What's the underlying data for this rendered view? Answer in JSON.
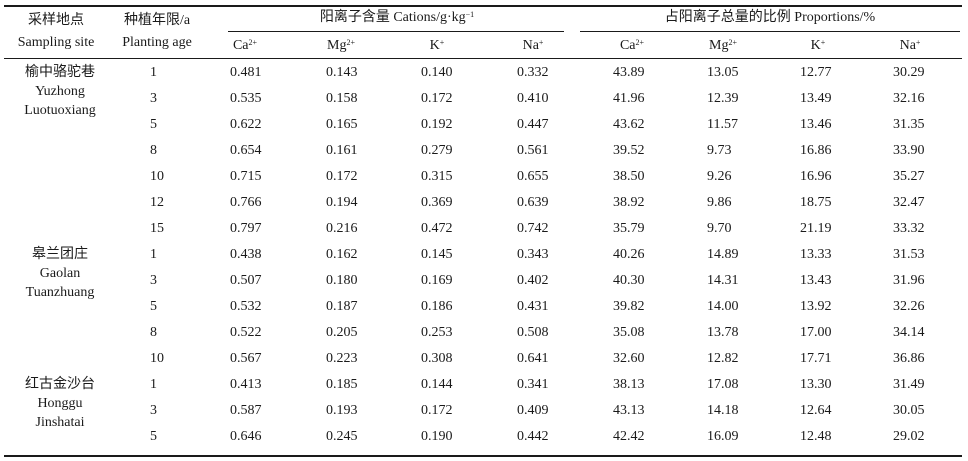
{
  "header": {
    "site_cn": "采样地点",
    "site_en": "Sampling site",
    "age_cn": "种植年限/a",
    "age_en": "Planting age",
    "cation_group": "阳离子含量 Cations/g·kg",
    "cation_group_sup": "−1",
    "proportion_group": "占阳离子总量的比例 Proportions/%",
    "ions": [
      {
        "base": "Ca",
        "sup": "2+"
      },
      {
        "base": "Mg",
        "sup": "2+"
      },
      {
        "base": "K",
        "sup": "+"
      },
      {
        "base": "Na",
        "sup": "+"
      }
    ]
  },
  "sites": [
    {
      "lines": [
        "榆中骆驼巷",
        "Yuzhong",
        "Luotuoxiang"
      ]
    },
    {
      "lines": [
        "皋兰团庄",
        "Gaolan",
        "Tuanzhuang"
      ]
    },
    {
      "lines": [
        "红古金沙台",
        "Honggu",
        "Jinshatai"
      ]
    }
  ],
  "rows": [
    {
      "site": 0,
      "age": "1",
      "c": [
        "0.481",
        "0.143",
        "0.140",
        "0.332"
      ],
      "p": [
        "43.89",
        "13.05",
        "12.77",
        "30.29"
      ]
    },
    {
      "site": 0,
      "age": "3",
      "c": [
        "0.535",
        "0.158",
        "0.172",
        "0.410"
      ],
      "p": [
        "41.96",
        "12.39",
        "13.49",
        "32.16"
      ]
    },
    {
      "site": 0,
      "age": "5",
      "c": [
        "0.622",
        "0.165",
        "0.192",
        "0.447"
      ],
      "p": [
        "43.62",
        "11.57",
        "13.46",
        "31.35"
      ]
    },
    {
      "site": 0,
      "age": "8",
      "c": [
        "0.654",
        "0.161",
        "0.279",
        "0.561"
      ],
      "p": [
        "39.52",
        "9.73",
        "16.86",
        "33.90"
      ]
    },
    {
      "site": 0,
      "age": "10",
      "c": [
        "0.715",
        "0.172",
        "0.315",
        "0.655"
      ],
      "p": [
        "38.50",
        "9.26",
        "16.96",
        "35.27"
      ]
    },
    {
      "site": 0,
      "age": "12",
      "c": [
        "0.766",
        "0.194",
        "0.369",
        "0.639"
      ],
      "p": [
        "38.92",
        "9.86",
        "18.75",
        "32.47"
      ]
    },
    {
      "site": 0,
      "age": "15",
      "c": [
        "0.797",
        "0.216",
        "0.472",
        "0.742"
      ],
      "p": [
        "35.79",
        "9.70",
        "21.19",
        "33.32"
      ]
    },
    {
      "site": 1,
      "age": "1",
      "c": [
        "0.438",
        "0.162",
        "0.145",
        "0.343"
      ],
      "p": [
        "40.26",
        "14.89",
        "13.33",
        "31.53"
      ]
    },
    {
      "site": 1,
      "age": "3",
      "c": [
        "0.507",
        "0.180",
        "0.169",
        "0.402"
      ],
      "p": [
        "40.30",
        "14.31",
        "13.43",
        "31.96"
      ]
    },
    {
      "site": 1,
      "age": "5",
      "c": [
        "0.532",
        "0.187",
        "0.186",
        "0.431"
      ],
      "p": [
        "39.82",
        "14.00",
        "13.92",
        "32.26"
      ]
    },
    {
      "site": 1,
      "age": "8",
      "c": [
        "0.522",
        "0.205",
        "0.253",
        "0.508"
      ],
      "p": [
        "35.08",
        "13.78",
        "17.00",
        "34.14"
      ]
    },
    {
      "site": 1,
      "age": "10",
      "c": [
        "0.567",
        "0.223",
        "0.308",
        "0.641"
      ],
      "p": [
        "32.60",
        "12.82",
        "17.71",
        "36.86"
      ]
    },
    {
      "site": 2,
      "age": "1",
      "c": [
        "0.413",
        "0.185",
        "0.144",
        "0.341"
      ],
      "p": [
        "38.13",
        "17.08",
        "13.30",
        "31.49"
      ]
    },
    {
      "site": 2,
      "age": "3",
      "c": [
        "0.587",
        "0.193",
        "0.172",
        "0.409"
      ],
      "p": [
        "43.13",
        "14.18",
        "12.64",
        "30.05"
      ]
    },
    {
      "site": 2,
      "age": "5",
      "c": [
        "0.646",
        "0.245",
        "0.190",
        "0.442"
      ],
      "p": [
        "42.42",
        "16.09",
        "12.48",
        "29.02"
      ]
    }
  ]
}
